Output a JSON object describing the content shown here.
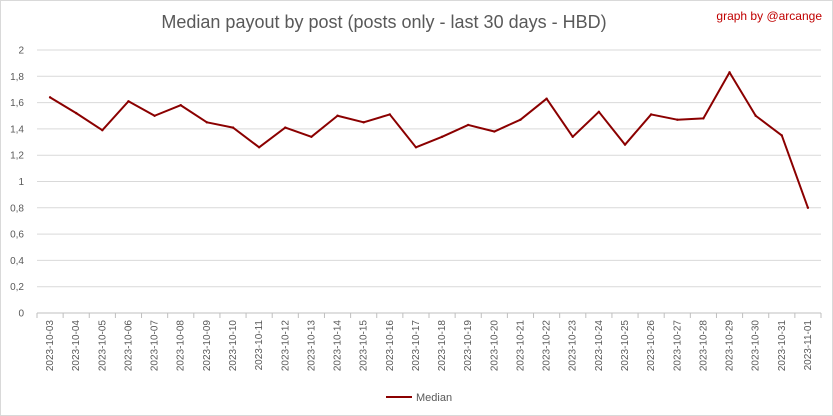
{
  "chart_data": {
    "type": "line",
    "title": "Median payout by post (posts only - last 30 days - HBD)",
    "credit": "graph by @arcange",
    "xlabel": "",
    "ylabel": "",
    "ylim": [
      0,
      2
    ],
    "yticks": [
      "0",
      "0,2",
      "0,4",
      "0,6",
      "0,8",
      "1",
      "1,2",
      "1,4",
      "1,6",
      "1,8",
      "2"
    ],
    "grid": true,
    "legend_position": "bottom",
    "x": [
      "2023-10-03",
      "2023-10-04",
      "2023-10-05",
      "2023-10-06",
      "2023-10-07",
      "2023-10-08",
      "2023-10-09",
      "2023-10-10",
      "2023-10-11",
      "2023-10-12",
      "2023-10-13",
      "2023-10-14",
      "2023-10-15",
      "2023-10-16",
      "2023-10-17",
      "2023-10-18",
      "2023-10-19",
      "2023-10-20",
      "2023-10-21",
      "2023-10-22",
      "2023-10-23",
      "2023-10-24",
      "2023-10-25",
      "2023-10-26",
      "2023-10-27",
      "2023-10-28",
      "2023-10-29",
      "2023-10-30",
      "2023-10-31",
      "2023-11-01"
    ],
    "series": [
      {
        "name": "Median",
        "color": "#8b0000",
        "values": [
          1.64,
          1.52,
          1.39,
          1.61,
          1.5,
          1.58,
          1.45,
          1.41,
          1.26,
          1.41,
          1.34,
          1.5,
          1.45,
          1.51,
          1.26,
          1.34,
          1.43,
          1.38,
          1.47,
          1.63,
          1.34,
          1.53,
          1.28,
          1.51,
          1.47,
          1.48,
          1.83,
          1.5,
          1.35,
          0.8
        ]
      }
    ]
  }
}
